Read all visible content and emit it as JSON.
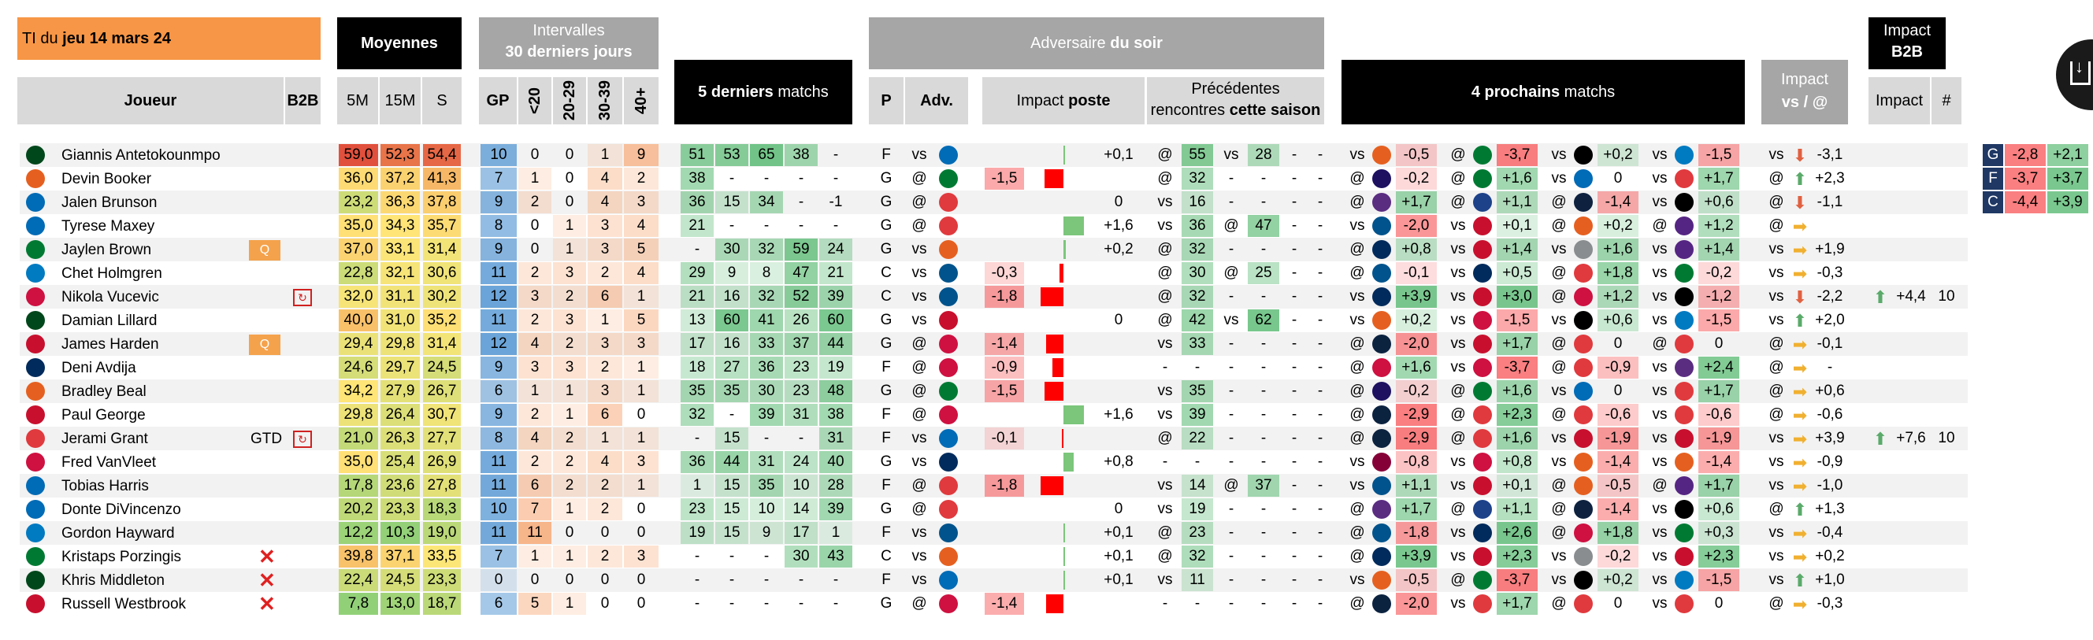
{
  "header": {
    "ti_prefix": "TI du",
    "ti_date": "jeu 14 mars 24",
    "joueur": "Joueur",
    "b2b": "B2B",
    "moyennes": "Moyennes",
    "m5": "5M",
    "m15": "15M",
    "s": "S",
    "intervalles_1": "Intervalles",
    "intervalles_2": "30 derniers jours",
    "gp": "GP",
    "lt20": "<20",
    "r2029": "20-29",
    "r3039": "30-39",
    "gt40": "40+",
    "last5": "5 derniers",
    "last5_suffix": "matchs",
    "adversaire": "Adversaire",
    "adversaire_suffix": "du soir",
    "p": "P",
    "adv": "Adv.",
    "impact_poste_1": "Impact",
    "impact_poste_2": "poste",
    "prec_1": "Précédentes",
    "prec_2": "rencontres",
    "prec_3": "cette saison",
    "next4_prefix": "4 prochains",
    "next4_suffix": "matchs",
    "impact_vs_1": "Impact",
    "impact_vs_2": "vs / @",
    "impact_b2b_1": "Impact",
    "impact_b2b_2": "B2B",
    "impact": "Impact",
    "hash": "#"
  },
  "colors": {
    "orange": "#f79646",
    "black": "#000000",
    "gray": "#a6a6a6",
    "light": "#d9d9d9",
    "blue_dark": "#1f3864",
    "red": "#ff0000",
    "green": "#7bc67b"
  },
  "players": [
    {
      "logo": "MIL",
      "name": "Giannis Antetokounmpo",
      "b2b": "",
      "badge": "",
      "m5": "59,0",
      "m15": "52,3",
      "s": "54,4",
      "gp": "10",
      "lt20": "0",
      "r2029": "0",
      "r3039": "1",
      "gt40": "9",
      "l5": [
        "51",
        "53",
        "65",
        "38",
        "-"
      ],
      "p": "F",
      "vs": "vs",
      "adv": "PHI",
      "ip": "+0,1",
      "prec": [
        "@",
        "55",
        "vs",
        "28",
        "-",
        "-"
      ],
      "next": [
        [
          "vs",
          "PHX",
          "-0,5"
        ],
        [
          "@",
          "BOS",
          "-3,7"
        ],
        [
          "vs",
          "BKN",
          "+0,2"
        ],
        [
          "vs",
          "OKC",
          "-1,5"
        ]
      ],
      "ivs": "vs",
      "iarrow": "down",
      "ival": "-3,1",
      "b2bi": "",
      "b2bn": ""
    },
    {
      "logo": "PHX",
      "name": "Devin Booker",
      "b2b": "",
      "badge": "",
      "m5": "36,0",
      "m15": "37,2",
      "s": "41,3",
      "gp": "7",
      "lt20": "1",
      "r2029": "0",
      "r3039": "4",
      "gt40": "2",
      "l5": [
        "38",
        "-",
        "-",
        "-",
        "-"
      ],
      "p": "G",
      "vs": "@",
      "adv": "BOS",
      "ip": "-1,5",
      "prec": [
        "@",
        "32",
        "-",
        "-",
        "-",
        "-"
      ],
      "next": [
        [
          "@",
          "CHA",
          "-0,2"
        ],
        [
          "@",
          "BOS",
          "+1,6"
        ],
        [
          "vs",
          "PHI",
          "0"
        ],
        [
          "vs",
          "ATL",
          "+1,7"
        ]
      ],
      "ivs": "@",
      "iarrow": "up",
      "ival": "+2,3",
      "b2bi": "",
      "b2bn": ""
    },
    {
      "logo": "NYK",
      "name": "Jalen Brunson",
      "b2b": "",
      "badge": "",
      "m5": "23,2",
      "m15": "36,3",
      "s": "37,8",
      "gp": "9",
      "lt20": "2",
      "r2029": "0",
      "r3039": "4",
      "gt40": "3",
      "l5": [
        "36",
        "15",
        "34",
        "-",
        "-1"
      ],
      "p": "G",
      "vs": "@",
      "adv": "POR",
      "ip": "0",
      "prec": [
        "vs",
        "16",
        "-",
        "-",
        "-",
        "-"
      ],
      "next": [
        [
          "@",
          "SAC",
          "+1,7"
        ],
        [
          "@",
          "GSW",
          "+1,1"
        ],
        [
          "@",
          "DEN",
          "-1,4"
        ],
        [
          "vs",
          "BKN",
          "+0,6"
        ]
      ],
      "ivs": "@",
      "iarrow": "down",
      "ival": "-1,1",
      "b2bi": "",
      "b2bn": ""
    },
    {
      "logo": "PHI",
      "name": "Tyrese Maxey",
      "b2b": "",
      "badge": "",
      "m5": "35,0",
      "m15": "34,3",
      "s": "35,7",
      "gp": "8",
      "lt20": "0",
      "r2029": "1",
      "r3039": "3",
      "gt40": "4",
      "l5": [
        "21",
        "-",
        "-",
        "-",
        "-"
      ],
      "p": "G",
      "vs": "@",
      "adv": "POR",
      "ip": "+1,6",
      "prec": [
        "vs",
        "36",
        "@",
        "47",
        "-",
        "-"
      ],
      "next": [
        [
          "vs",
          "DAL",
          "-2,0"
        ],
        [
          "vs",
          "DET",
          "+0,1"
        ],
        [
          "@",
          "PHX",
          "+0,2"
        ],
        [
          "@",
          "LAL",
          "+1,2"
        ]
      ],
      "ivs": "@",
      "iarrow": "right",
      "ival": "",
      "b2bi": "",
      "b2bn": ""
    },
    {
      "logo": "BOS",
      "name": "Jaylen Brown",
      "b2b": "",
      "badge": "Q",
      "m5": "37,0",
      "m15": "33,1",
      "s": "31,4",
      "gp": "9",
      "lt20": "0",
      "r2029": "1",
      "r3039": "3",
      "gt40": "5",
      "l5": [
        "-",
        "30",
        "32",
        "59",
        "24"
      ],
      "p": "G",
      "vs": "vs",
      "adv": "PHX",
      "ip": "+0,2",
      "prec": [
        "@",
        "32",
        "-",
        "-",
        "-",
        "-"
      ],
      "next": [
        [
          "@",
          "WAS",
          "+0,8"
        ],
        [
          "vs",
          "DET",
          "+1,4"
        ],
        [
          "vs",
          "SAS",
          "+1,6"
        ],
        [
          "vs",
          "LAL",
          "+1,4"
        ]
      ],
      "ivs": "vs",
      "iarrow": "right",
      "ival": "+1,9",
      "b2bi": "",
      "b2bn": ""
    },
    {
      "logo": "OKC",
      "name": "Chet Holmgren",
      "b2b": "",
      "badge": "",
      "m5": "22,8",
      "m15": "32,1",
      "s": "30,6",
      "gp": "11",
      "lt20": "2",
      "r2029": "3",
      "r3039": "2",
      "gt40": "4",
      "l5": [
        "29",
        "9",
        "8",
        "47",
        "21"
      ],
      "p": "C",
      "vs": "vs",
      "adv": "DAL",
      "ip": "-0,3",
      "prec": [
        "@",
        "30",
        "@",
        "25",
        "-",
        "-"
      ],
      "next": [
        [
          "@",
          "DAL",
          "-0,1"
        ],
        [
          "vs",
          "UTA",
          "+0,5"
        ],
        [
          "@",
          "POR",
          "+1,8"
        ],
        [
          "vs",
          "BOS",
          "-0,2"
        ]
      ],
      "ivs": "vs",
      "iarrow": "right",
      "ival": "-0,3",
      "b2bi": "",
      "b2bn": ""
    },
    {
      "logo": "CHI",
      "name": "Nikola Vucevic",
      "b2b": "",
      "badge": "b2b",
      "m5": "32,0",
      "m15": "31,1",
      "s": "30,2",
      "gp": "12",
      "lt20": "3",
      "r2029": "2",
      "r3039": "6",
      "gt40": "1",
      "l5": [
        "21",
        "16",
        "32",
        "52",
        "39"
      ],
      "p": "C",
      "vs": "vs",
      "adv": "DAL",
      "ip": "-1,8",
      "prec": [
        "@",
        "32",
        "-",
        "-",
        "-",
        "-"
      ],
      "next": [
        [
          "vs",
          "WAS",
          "+3,9"
        ],
        [
          "vs",
          "DET",
          "+3,0"
        ],
        [
          "@",
          "TOR",
          "+1,2"
        ],
        [
          "vs",
          "BKN",
          "-1,2"
        ]
      ],
      "ivs": "vs",
      "iarrow": "down",
      "ival": "-2,2",
      "b2bi": "+4,4",
      "b2bn": "10"
    },
    {
      "logo": "MIL",
      "name": "Damian Lillard",
      "b2b": "",
      "badge": "",
      "m5": "40,0",
      "m15": "31,0",
      "s": "35,2",
      "gp": "11",
      "lt20": "2",
      "r2029": "3",
      "r3039": "1",
      "gt40": "5",
      "l5": [
        "13",
        "60",
        "41",
        "26",
        "60"
      ],
      "p": "G",
      "vs": "vs",
      "adv": "LAC",
      "ip": "0",
      "prec": [
        "@",
        "42",
        "vs",
        "62",
        "-",
        "-"
      ],
      "next": [
        [
          "vs",
          "PHX",
          "+0,2"
        ],
        [
          "vs",
          "HOU",
          "-1,5"
        ],
        [
          "vs",
          "BKN",
          "+0,6"
        ],
        [
          "vs",
          "OKC",
          "-1,5"
        ]
      ],
      "ivs": "vs",
      "iarrow": "up",
      "ival": "+2,0",
      "b2bi": "",
      "b2bn": ""
    },
    {
      "logo": "LAC",
      "name": "James Harden",
      "b2b": "",
      "badge": "Q",
      "m5": "29,4",
      "m15": "29,8",
      "s": "31,4",
      "gp": "12",
      "lt20": "4",
      "r2029": "2",
      "r3039": "3",
      "gt40": "3",
      "l5": [
        "17",
        "16",
        "33",
        "37",
        "44"
      ],
      "p": "G",
      "vs": "@",
      "adv": "CHI",
      "ip": "-1,4",
      "prec": [
        "vs",
        "33",
        "-",
        "-",
        "-",
        "-"
      ],
      "next": [
        [
          "@",
          "NOP",
          "-2,0"
        ],
        [
          "vs",
          "DET",
          "+1,7"
        ],
        [
          "@",
          "POR",
          "0"
        ],
        [
          "@",
          "POR",
          "0"
        ]
      ],
      "ivs": "@",
      "iarrow": "right",
      "ival": "-0,1",
      "b2bi": "",
      "b2bn": ""
    },
    {
      "logo": "WAS",
      "name": "Deni Avdija",
      "b2b": "",
      "badge": "",
      "m5": "24,6",
      "m15": "29,7",
      "s": "24,5",
      "gp": "9",
      "lt20": "3",
      "r2029": "3",
      "r3039": "2",
      "gt40": "1",
      "l5": [
        "18",
        "27",
        "36",
        "23",
        "19"
      ],
      "p": "F",
      "vs": "@",
      "adv": "HOU",
      "ip": "-0,9",
      "prec": [
        "-",
        "-",
        "-",
        "-",
        "-",
        "-"
      ],
      "next": [
        [
          "@",
          "CHI",
          "+1,6"
        ],
        [
          "vs",
          "HOU",
          "-3,7"
        ],
        [
          "@",
          "POR",
          "-0,9"
        ],
        [
          "vs",
          "SAC",
          "+2,4"
        ]
      ],
      "ivs": "@",
      "iarrow": "right",
      "ival": "-",
      "b2bi": "",
      "b2bn": ""
    },
    {
      "logo": "PHX",
      "name": "Bradley Beal",
      "b2b": "",
      "badge": "",
      "m5": "34,2",
      "m15": "27,9",
      "s": "26,7",
      "gp": "6",
      "lt20": "1",
      "r2029": "1",
      "r3039": "3",
      "gt40": "1",
      "l5": [
        "35",
        "35",
        "30",
        "23",
        "48"
      ],
      "p": "G",
      "vs": "@",
      "adv": "BOS",
      "ip": "-1,5",
      "prec": [
        "vs",
        "35",
        "-",
        "-",
        "-",
        "-"
      ],
      "next": [
        [
          "@",
          "CHA",
          "-0,2"
        ],
        [
          "@",
          "BOS",
          "+1,6"
        ],
        [
          "vs",
          "PHI",
          "0"
        ],
        [
          "vs",
          "ATL",
          "+1,7"
        ]
      ],
      "ivs": "@",
      "iarrow": "right",
      "ival": "+0,6",
      "b2bi": "",
      "b2bn": ""
    },
    {
      "logo": "LAC",
      "name": "Paul George",
      "b2b": "",
      "badge": "",
      "m5": "29,8",
      "m15": "26,4",
      "s": "30,7",
      "gp": "9",
      "lt20": "2",
      "r2029": "1",
      "r3039": "6",
      "gt40": "0",
      "l5": [
        "32",
        "-",
        "39",
        "31",
        "38"
      ],
      "p": "F",
      "vs": "@",
      "adv": "CHI",
      "ip": "+1,6",
      "prec": [
        "vs",
        "39",
        "-",
        "-",
        "-",
        "-"
      ],
      "next": [
        [
          "@",
          "NOP",
          "-2,9"
        ],
        [
          "@",
          "ATL",
          "+2,3"
        ],
        [
          "@",
          "POR",
          "-0,6"
        ],
        [
          "vs",
          "POR",
          "-0,6"
        ]
      ],
      "ivs": "@",
      "iarrow": "right",
      "ival": "-0,6",
      "b2bi": "",
      "b2bn": ""
    },
    {
      "logo": "POR",
      "name": "Jerami Grant",
      "b2b": "GTD",
      "badge": "b2b",
      "m5": "21,0",
      "m15": "26,3",
      "s": "27,7",
      "gp": "8",
      "lt20": "4",
      "r2029": "2",
      "r3039": "1",
      "gt40": "1",
      "l5": [
        "-",
        "15",
        "-",
        "-",
        "31"
      ],
      "p": "F",
      "vs": "vs",
      "adv": "NYK",
      "ip": "-0,1",
      "prec": [
        "@",
        "22",
        "-",
        "-",
        "-",
        "-"
      ],
      "next": [
        [
          "@",
          "NOP",
          "-2,9"
        ],
        [
          "@",
          "ATL",
          "+1,6"
        ],
        [
          "vs",
          "LAC",
          "-1,9"
        ],
        [
          "vs",
          "LAC",
          "-1,9"
        ]
      ],
      "ivs": "vs",
      "iarrow": "right",
      "ival": "+3,9",
      "b2bi": "+7,6",
      "b2bn": "10"
    },
    {
      "logo": "HOU",
      "name": "Fred VanVleet",
      "b2b": "",
      "badge": "",
      "m5": "35,0",
      "m15": "25,4",
      "s": "26,9",
      "gp": "11",
      "lt20": "2",
      "r2029": "2",
      "r3039": "4",
      "gt40": "3",
      "l5": [
        "36",
        "44",
        "31",
        "24",
        "40"
      ],
      "p": "G",
      "vs": "vs",
      "adv": "WAS",
      "ip": "+0,8",
      "prec": [
        "-",
        "-",
        "-",
        "-",
        "-",
        "-"
      ],
      "next": [
        [
          "vs",
          "CLE",
          "-0,8"
        ],
        [
          "vs",
          "CHI",
          "+0,8"
        ],
        [
          "vs",
          "PHX",
          "-1,4"
        ],
        [
          "vs",
          "PHX",
          "-1,4"
        ]
      ],
      "ivs": "vs",
      "iarrow": "right",
      "ival": "-0,9",
      "b2bi": "",
      "b2bn": ""
    },
    {
      "logo": "PHI",
      "name": "Tobias Harris",
      "b2b": "",
      "badge": "",
      "m5": "17,8",
      "m15": "23,6",
      "s": "27,8",
      "gp": "11",
      "lt20": "6",
      "r2029": "2",
      "r3039": "2",
      "gt40": "1",
      "l5": [
        "1",
        "15",
        "35",
        "10",
        "28"
      ],
      "p": "F",
      "vs": "@",
      "adv": "POR",
      "ip": "-1,8",
      "prec": [
        "vs",
        "14",
        "@",
        "37",
        "-",
        "-"
      ],
      "next": [
        [
          "vs",
          "DAL",
          "+1,1"
        ],
        [
          "vs",
          "DET",
          "+0,1"
        ],
        [
          "@",
          "PHX",
          "-0,5"
        ],
        [
          "@",
          "LAL",
          "+1,7"
        ]
      ],
      "ivs": "vs",
      "iarrow": "right",
      "ival": "-1,0",
      "b2bi": "",
      "b2bn": ""
    },
    {
      "logo": "NYK",
      "name": "Donte DiVincenzo",
      "b2b": "",
      "badge": "",
      "m5": "20,2",
      "m15": "23,3",
      "s": "18,3",
      "gp": "10",
      "lt20": "7",
      "r2029": "1",
      "r3039": "2",
      "gt40": "0",
      "l5": [
        "23",
        "15",
        "10",
        "14",
        "39"
      ],
      "p": "G",
      "vs": "@",
      "adv": "POR",
      "ip": "0",
      "prec": [
        "vs",
        "19",
        "-",
        "-",
        "-",
        "-"
      ],
      "next": [
        [
          "@",
          "SAC",
          "+1,7"
        ],
        [
          "@",
          "GSW",
          "+1,1"
        ],
        [
          "@",
          "DEN",
          "-1,4"
        ],
        [
          "vs",
          "BKN",
          "+0,6"
        ]
      ],
      "ivs": "@",
      "iarrow": "up",
      "ival": "+1,3",
      "b2bi": "",
      "b2bn": ""
    },
    {
      "logo": "OKC",
      "name": "Gordon Hayward",
      "b2b": "",
      "badge": "",
      "m5": "12,2",
      "m15": "10,3",
      "s": "19,0",
      "gp": "11",
      "lt20": "11",
      "r2029": "0",
      "r3039": "0",
      "gt40": "0",
      "l5": [
        "19",
        "15",
        "9",
        "17",
        "1"
      ],
      "p": "F",
      "vs": "vs",
      "adv": "DAL",
      "ip": "+0,1",
      "prec": [
        "@",
        "23",
        "-",
        "-",
        "-",
        "-"
      ],
      "next": [
        [
          "@",
          "DAL",
          "-1,8"
        ],
        [
          "vs",
          "UTA",
          "+2,6"
        ],
        [
          "@",
          "TOR",
          "+1,8"
        ],
        [
          "vs",
          "BOS",
          "+0,3"
        ]
      ],
      "ivs": "vs",
      "iarrow": "right",
      "ival": "-0,4",
      "b2bi": "",
      "b2bn": ""
    },
    {
      "logo": "BOS",
      "name": "Kristaps Porzingis",
      "b2b": "X",
      "badge": "",
      "m5": "39,8",
      "m15": "37,1",
      "s": "33,5",
      "gp": "7",
      "lt20": "1",
      "r2029": "1",
      "r3039": "2",
      "gt40": "3",
      "l5": [
        "-",
        "-",
        "-",
        "30",
        "43"
      ],
      "p": "C",
      "vs": "vs",
      "adv": "PHX",
      "ip": "+0,1",
      "prec": [
        "@",
        "32",
        "-",
        "-",
        "-",
        "-"
      ],
      "next": [
        [
          "@",
          "WAS",
          "+3,9"
        ],
        [
          "vs",
          "DET",
          "+2,3"
        ],
        [
          "vs",
          "SAS",
          "-0,2"
        ],
        [
          "vs",
          "DET",
          "+2,3"
        ]
      ],
      "ivs": "vs",
      "iarrow": "right",
      "ival": "+0,2",
      "b2bi": "",
      "b2bn": ""
    },
    {
      "logo": "MIL",
      "name": "Khris Middleton",
      "b2b": "X",
      "badge": "",
      "m5": "22,4",
      "m15": "24,5",
      "s": "23,3",
      "gp": "0",
      "lt20": "0",
      "r2029": "0",
      "r3039": "0",
      "gt40": "0",
      "l5": [
        "-",
        "-",
        "-",
        "-",
        "-"
      ],
      "p": "F",
      "vs": "vs",
      "adv": "PHI",
      "ip": "+0,1",
      "prec": [
        "vs",
        "11",
        "-",
        "-",
        "-",
        "-"
      ],
      "next": [
        [
          "vs",
          "PHX",
          "-0,5"
        ],
        [
          "@",
          "BOS",
          "-3,7"
        ],
        [
          "vs",
          "BKN",
          "+0,2"
        ],
        [
          "vs",
          "OKC",
          "-1,5"
        ]
      ],
      "ivs": "vs",
      "iarrow": "up",
      "ival": "+1,0",
      "b2bi": "",
      "b2bn": ""
    },
    {
      "logo": "LAC",
      "name": "Russell Westbrook",
      "b2b": "X",
      "badge": "",
      "m5": "7,8",
      "m15": "13,0",
      "s": "18,7",
      "gp": "6",
      "lt20": "5",
      "r2029": "1",
      "r3039": "0",
      "gt40": "0",
      "l5": [
        "-",
        "-",
        "-",
        "-",
        "-"
      ],
      "p": "G",
      "vs": "@",
      "adv": "CHI",
      "ip": "-1,4",
      "prec": [
        "-",
        "-",
        "-",
        "-",
        "-",
        "-"
      ],
      "next": [
        [
          "@",
          "NOP",
          "-2,0"
        ],
        [
          "vs",
          "ATL",
          "+1,7"
        ],
        [
          "@",
          "POR",
          "0"
        ],
        [
          "vs",
          "POR",
          "0"
        ]
      ],
      "ivs": "@",
      "iarrow": "right",
      "ival": "-0,3",
      "b2bi": "",
      "b2bn": ""
    }
  ],
  "side_panel": [
    {
      "pos": "G",
      "a": "-2,8",
      "b": "+2,1"
    },
    {
      "pos": "F",
      "a": "-3,7",
      "b": "+3,7"
    },
    {
      "pos": "C",
      "a": "-4,4",
      "b": "+3,9"
    }
  ],
  "download_icon": "download-icon"
}
